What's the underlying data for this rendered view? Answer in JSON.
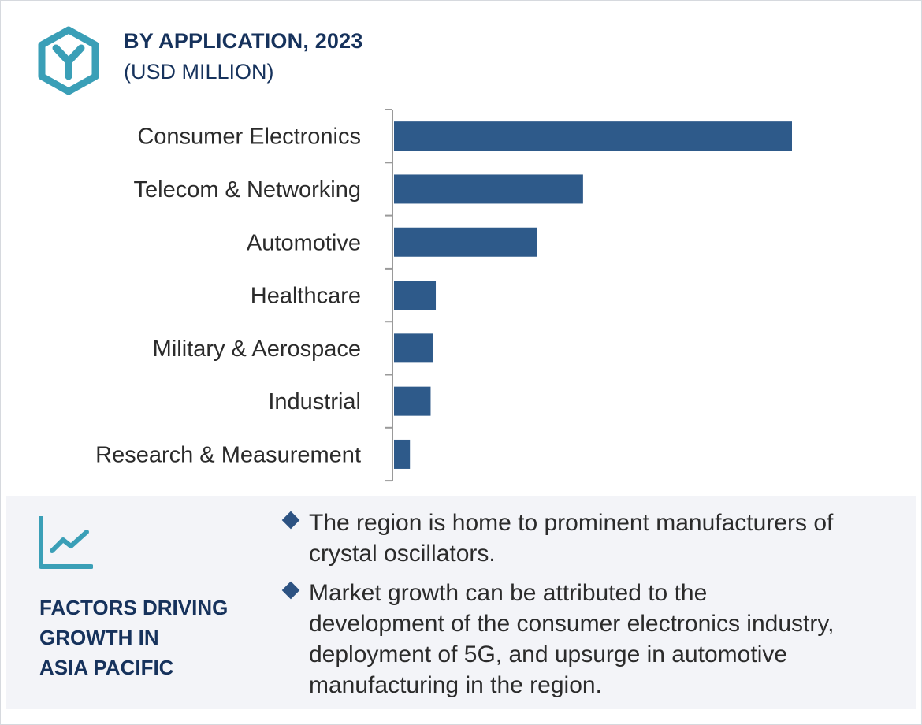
{
  "header": {
    "title": "BY APPLICATION, 2023",
    "subtitle": "(USD MILLION)",
    "icon": "hexagon-y-logo-icon"
  },
  "colors": {
    "bar": "#2e5a8a",
    "accent": "#3a9fb7",
    "heading": "#16325c",
    "panel": "#f3f4f8"
  },
  "chart_data": {
    "type": "bar",
    "orientation": "horizontal",
    "title": "BY APPLICATION, 2023",
    "subtitle": "(USD MILLION)",
    "xlabel": "",
    "ylabel": "",
    "x_axis_visible": false,
    "grid": false,
    "categories": [
      "Consumer Electronics",
      "Telecom & Networking",
      "Automotive",
      "Healthcare",
      "Military & Aerospace",
      "Industrial",
      "Research & Measurement"
    ],
    "values": [
      100,
      47.5,
      36,
      10.5,
      9.7,
      9.2,
      4
    ]
  },
  "factors": {
    "icon": "trend-chart-icon",
    "heading_lines": [
      "FACTORS DRIVING",
      "GROWTH IN",
      "ASIA PACIFIC"
    ],
    "bullets": [
      {
        "lines": [
          "The region is home to prominent manufacturers of",
          "crystal oscillators."
        ]
      },
      {
        "lines": [
          "Market growth can be attributed to the",
          "development of the consumer electronics industry,",
          "deployment of 5G, and upsurge in automotive",
          "manufacturing in the region."
        ]
      }
    ]
  }
}
